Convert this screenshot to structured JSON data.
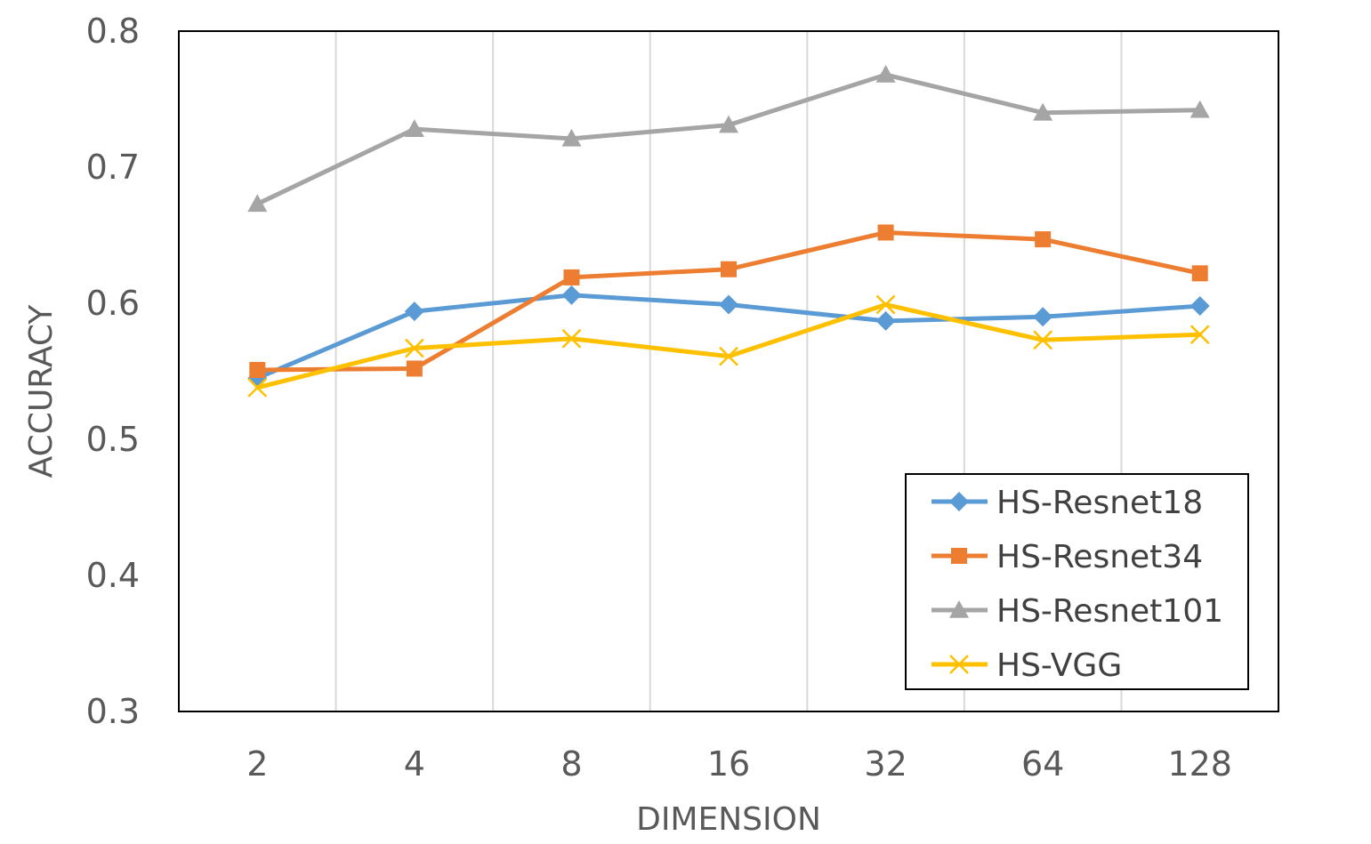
{
  "chart_data": {
    "type": "line",
    "title": "",
    "xlabel": "DIMENSION",
    "ylabel": "ACCURACY",
    "categories": [
      "2",
      "4",
      "8",
      "16",
      "32",
      "64",
      "128"
    ],
    "ylim": [
      0.3,
      0.8
    ],
    "yticks": [
      "0.3",
      "0.4",
      "0.5",
      "0.6",
      "0.7",
      "0.8"
    ],
    "legend_position": "bottom-right",
    "grid": "vertical",
    "series": [
      {
        "name": "HS-Resnet18",
        "color": "#5B9BD5",
        "marker": "diamond",
        "values": [
          0.545,
          0.594,
          0.606,
          0.599,
          0.587,
          0.59,
          0.598
        ]
      },
      {
        "name": "HS-Resnet34",
        "color": "#ED7D31",
        "marker": "square",
        "values": [
          0.551,
          0.552,
          0.619,
          0.625,
          0.652,
          0.647,
          0.622
        ]
      },
      {
        "name": "HS-Resnet101",
        "color": "#A5A5A5",
        "marker": "triangle",
        "values": [
          0.673,
          0.728,
          0.721,
          0.731,
          0.768,
          0.74,
          0.742
        ]
      },
      {
        "name": "HS-VGG",
        "color": "#FFC000",
        "marker": "x",
        "values": [
          0.538,
          0.567,
          0.574,
          0.561,
          0.599,
          0.573,
          0.577
        ]
      }
    ]
  }
}
